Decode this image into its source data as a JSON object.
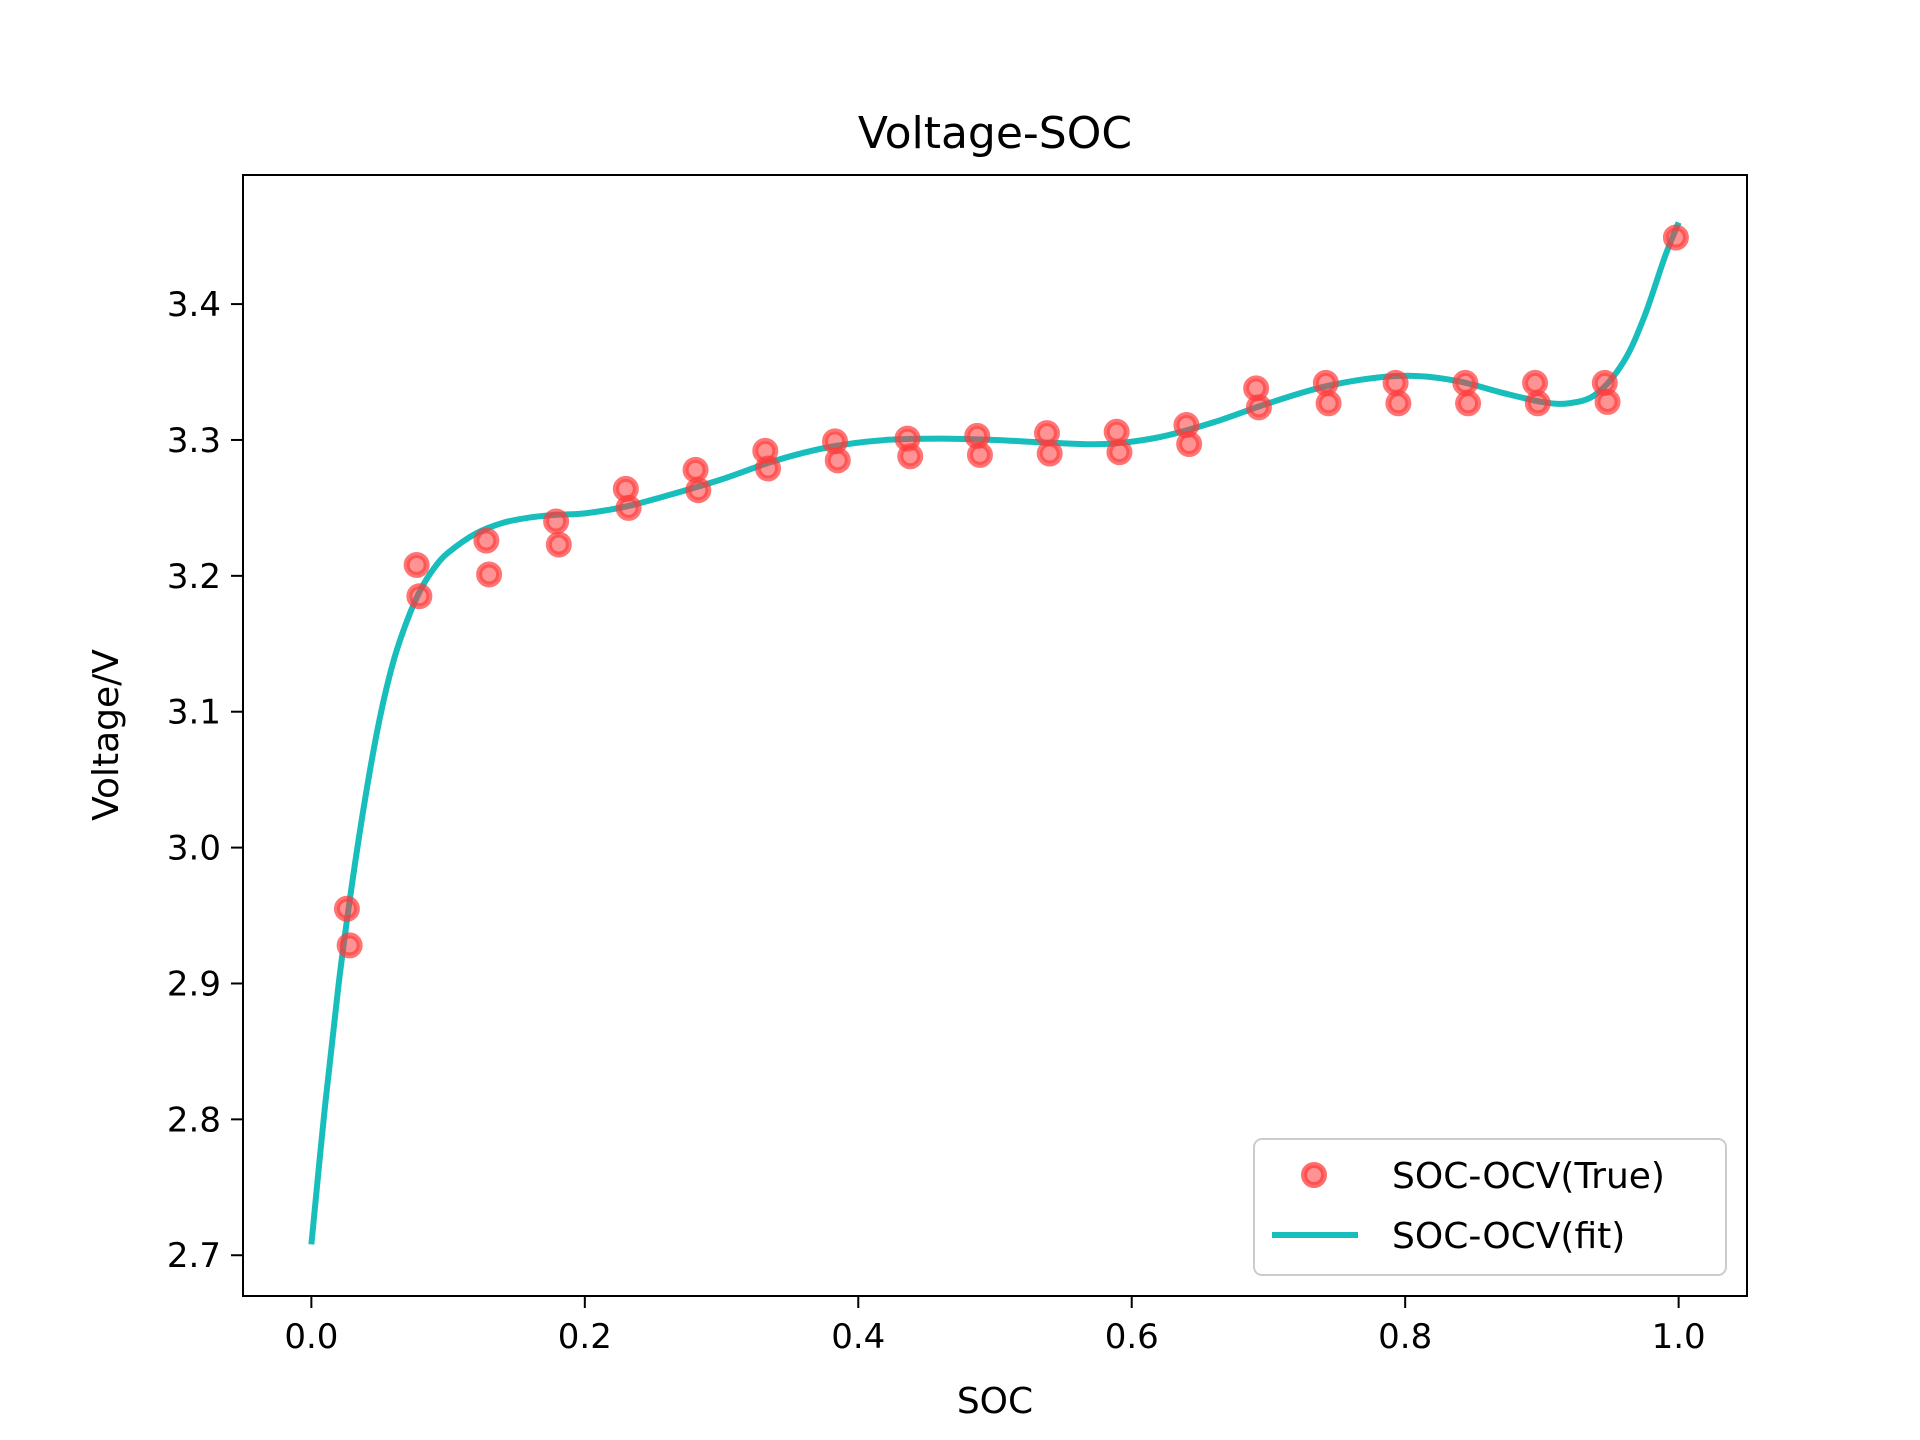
{
  "chart_data": {
    "type": "scatter",
    "title": "Voltage-SOC",
    "xlabel": "SOC",
    "ylabel": "Voltage/V",
    "xlim": [
      -0.05,
      1.05
    ],
    "ylim": [
      2.67,
      3.495
    ],
    "xticks": [
      0.0,
      0.2,
      0.4,
      0.6,
      0.8,
      1.0
    ],
    "xtick_labels": [
      "0.0",
      "0.2",
      "0.4",
      "0.6",
      "0.8",
      "1.0"
    ],
    "yticks": [
      2.7,
      2.8,
      2.9,
      3.0,
      3.1,
      3.2,
      3.3,
      3.4
    ],
    "ytick_labels": [
      "2.7",
      "2.8",
      "2.9",
      "3.0",
      "3.1",
      "3.2",
      "3.3",
      "3.4"
    ],
    "grid": false,
    "legend_position": "bottom-right",
    "series": [
      {
        "name": "SOC-OCV(True)",
        "kind": "scatter",
        "color": "#ff3b3b",
        "x": [
          0.026,
          0.028,
          0.077,
          0.079,
          0.128,
          0.13,
          0.179,
          0.181,
          0.23,
          0.232,
          0.281,
          0.283,
          0.332,
          0.334,
          0.383,
          0.385,
          0.436,
          0.438,
          0.487,
          0.489,
          0.538,
          0.54,
          0.589,
          0.591,
          0.64,
          0.642,
          0.691,
          0.693,
          0.742,
          0.744,
          0.793,
          0.795,
          0.844,
          0.846,
          0.895,
          0.897,
          0.946,
          0.948,
          0.998
        ],
        "y": [
          2.955,
          2.928,
          3.208,
          3.185,
          3.226,
          3.201,
          3.24,
          3.223,
          3.264,
          3.25,
          3.278,
          3.263,
          3.292,
          3.279,
          3.299,
          3.285,
          3.301,
          3.288,
          3.303,
          3.289,
          3.305,
          3.29,
          3.306,
          3.291,
          3.311,
          3.297,
          3.338,
          3.324,
          3.342,
          3.327,
          3.342,
          3.327,
          3.342,
          3.327,
          3.342,
          3.327,
          3.342,
          3.328,
          3.449
        ]
      },
      {
        "name": "SOC-OCV(fit)",
        "kind": "line",
        "color": "#17bebb",
        "x": [
          0.0,
          0.01,
          0.02,
          0.03,
          0.04,
          0.05,
          0.06,
          0.07,
          0.08,
          0.09,
          0.1,
          0.12,
          0.14,
          0.16,
          0.18,
          0.2,
          0.23,
          0.26,
          0.3,
          0.34,
          0.38,
          0.42,
          0.46,
          0.5,
          0.54,
          0.58,
          0.62,
          0.66,
          0.7,
          0.74,
          0.78,
          0.81,
          0.84,
          0.87,
          0.9,
          0.92,
          0.94,
          0.96,
          0.975,
          0.99,
          1.0
        ],
        "y": [
          2.708,
          2.81,
          2.9,
          2.975,
          3.04,
          3.095,
          3.137,
          3.167,
          3.19,
          3.206,
          3.217,
          3.231,
          3.239,
          3.243,
          3.245,
          3.246,
          3.251,
          3.259,
          3.271,
          3.285,
          3.295,
          3.3,
          3.301,
          3.3,
          3.298,
          3.297,
          3.302,
          3.313,
          3.327,
          3.339,
          3.346,
          3.347,
          3.343,
          3.335,
          3.328,
          3.327,
          3.334,
          3.358,
          3.391,
          3.435,
          3.46
        ]
      }
    ]
  }
}
